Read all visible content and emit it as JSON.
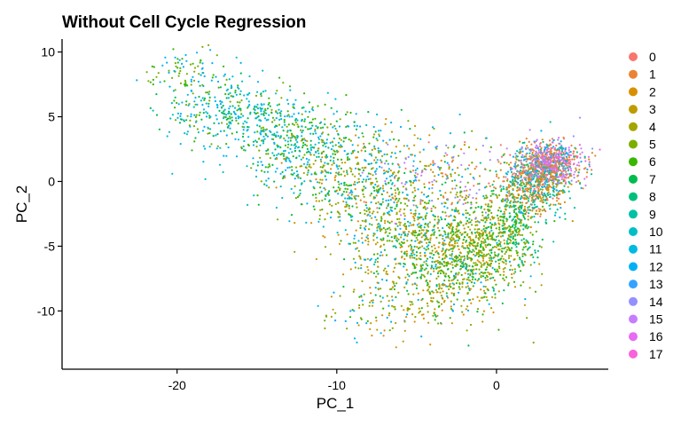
{
  "chart_data": {
    "type": "scatter",
    "title": "Without Cell Cycle Regression",
    "xlabel": "PC_1",
    "ylabel": "PC_2",
    "xlim": [
      -27.2,
      7.0
    ],
    "ylim": [
      -14.5,
      11.0
    ],
    "x_ticks": [
      -20,
      -10,
      0
    ],
    "y_ticks": [
      10,
      5,
      0,
      -5,
      -10
    ],
    "legend_position": "right",
    "grid": false,
    "series": [
      {
        "name": "0",
        "color": "#F8766D"
      },
      {
        "name": "1",
        "color": "#EB8335"
      },
      {
        "name": "2",
        "color": "#D89000"
      },
      {
        "name": "3",
        "color": "#BF9B00"
      },
      {
        "name": "4",
        "color": "#A3A500"
      },
      {
        "name": "5",
        "color": "#7CAE00"
      },
      {
        "name": "6",
        "color": "#39B600"
      },
      {
        "name": "7",
        "color": "#00BB4E"
      },
      {
        "name": "8",
        "color": "#00BF7D"
      },
      {
        "name": "9",
        "color": "#00C1A3"
      },
      {
        "name": "10",
        "color": "#00BFC4"
      },
      {
        "name": "11",
        "color": "#00BAE0"
      },
      {
        "name": "12",
        "color": "#00B0F6"
      },
      {
        "name": "13",
        "color": "#35A2FF"
      },
      {
        "name": "14",
        "color": "#9590FF"
      },
      {
        "name": "15",
        "color": "#C77CFF"
      },
      {
        "name": "16",
        "color": "#E76BF3"
      },
      {
        "name": "17",
        "color": "#FA62DB"
      }
    ],
    "point_regions": [
      {
        "cx": -17.0,
        "cy": 5.5,
        "sx": 2.0,
        "sy": 1.3,
        "n": 300,
        "groups": [
          12,
          11,
          6,
          7,
          5,
          10
        ]
      },
      {
        "cx": -13.0,
        "cy": 3.0,
        "sx": 2.2,
        "sy": 1.6,
        "n": 420,
        "groups": [
          12,
          11,
          10,
          6,
          7,
          5
        ]
      },
      {
        "cx": -9.0,
        "cy": 0.5,
        "sx": 2.2,
        "sy": 2.0,
        "n": 420,
        "groups": [
          12,
          11,
          5,
          6,
          3,
          2,
          7
        ]
      },
      {
        "cx": -5.5,
        "cy": -3.5,
        "sx": 2.5,
        "sy": 2.2,
        "n": 620,
        "groups": [
          2,
          3,
          5,
          6,
          12,
          10,
          7,
          4
        ]
      },
      {
        "cx": -2.8,
        "cy": -7.0,
        "sx": 2.0,
        "sy": 1.8,
        "n": 520,
        "groups": [
          5,
          6,
          3,
          2,
          4,
          7,
          12
        ]
      },
      {
        "cx": -1.0,
        "cy": -5.0,
        "sx": 1.3,
        "sy": 1.6,
        "n": 320,
        "groups": [
          5,
          6,
          7,
          4,
          3
        ]
      },
      {
        "cx": 1.0,
        "cy": -3.0,
        "sx": 1.0,
        "sy": 1.8,
        "n": 380,
        "groups": [
          7,
          8,
          5,
          6,
          9,
          3
        ]
      },
      {
        "cx": 2.5,
        "cy": 0.0,
        "sx": 1.0,
        "sy": 1.2,
        "n": 620,
        "groups": [
          0,
          1,
          2,
          3,
          8,
          9,
          12
        ]
      },
      {
        "cx": 3.5,
        "cy": 1.5,
        "sx": 0.9,
        "sy": 0.8,
        "n": 650,
        "groups": [
          0,
          1,
          15,
          16,
          17,
          14,
          12,
          2,
          9
        ]
      },
      {
        "cx": -3.0,
        "cy": 0.5,
        "sx": 2.5,
        "sy": 1.6,
        "n": 230,
        "groups": [
          2,
          3,
          14,
          15,
          12,
          5,
          0
        ]
      },
      {
        "cx": -19.5,
        "cy": 8.5,
        "sx": 1.3,
        "sy": 0.8,
        "n": 80,
        "groups": [
          6,
          5,
          12
        ]
      },
      {
        "cx": -7.0,
        "cy": -10.0,
        "sx": 1.8,
        "sy": 1.2,
        "n": 110,
        "groups": [
          5,
          3,
          12,
          6,
          2
        ]
      }
    ]
  }
}
